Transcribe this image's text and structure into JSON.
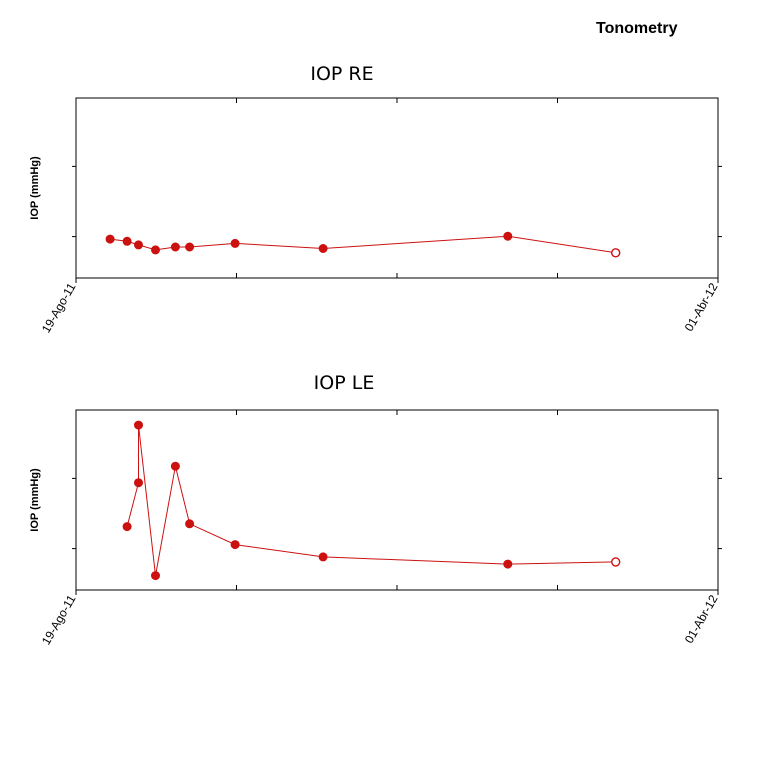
{
  "header": {
    "title": "Tonometry"
  },
  "colors": {
    "series": "#cc1111",
    "axis": "#000000"
  },
  "chart_data": [
    {
      "type": "line",
      "title": "IOP RE",
      "ylabel": "IOP (mmHg)",
      "xlabel": "",
      "x_tick_labels": [
        "19-Ago-11",
        "01-Abr-12"
      ],
      "xlim": [
        "2011-08-19",
        "2012-04-01"
      ],
      "ylim": [
        0,
        25
      ],
      "grid": false,
      "x": [
        "2011-08-31",
        "2011-09-06",
        "2011-09-10",
        "2011-09-16",
        "2011-09-23",
        "2011-09-28",
        "2011-10-14",
        "2011-11-14",
        "2012-01-18",
        "2012-02-25"
      ],
      "values": [
        5.4,
        5.1,
        4.6,
        3.9,
        4.3,
        4.3,
        4.8,
        4.1,
        5.8,
        3.5
      ],
      "last_point_open": true
    },
    {
      "type": "line",
      "title": "IOP LE",
      "ylabel": "IOP (mmHg)",
      "xlabel": "",
      "x_tick_labels": [
        "19-Ago-11",
        "01-Abr-12"
      ],
      "xlim": [
        "2011-08-19",
        "2012-04-01"
      ],
      "ylim": [
        0,
        25
      ],
      "grid": false,
      "x": [
        "2011-09-06",
        "2011-09-10",
        "2011-09-10",
        "2011-09-16",
        "2011-09-23",
        "2011-09-28",
        "2011-10-14",
        "2011-11-14",
        "2012-01-18",
        "2012-02-25"
      ],
      "values": [
        8.8,
        14.9,
        22.9,
        2.0,
        17.2,
        9.2,
        6.3,
        4.6,
        3.6,
        3.9
      ],
      "last_point_open": true
    }
  ]
}
